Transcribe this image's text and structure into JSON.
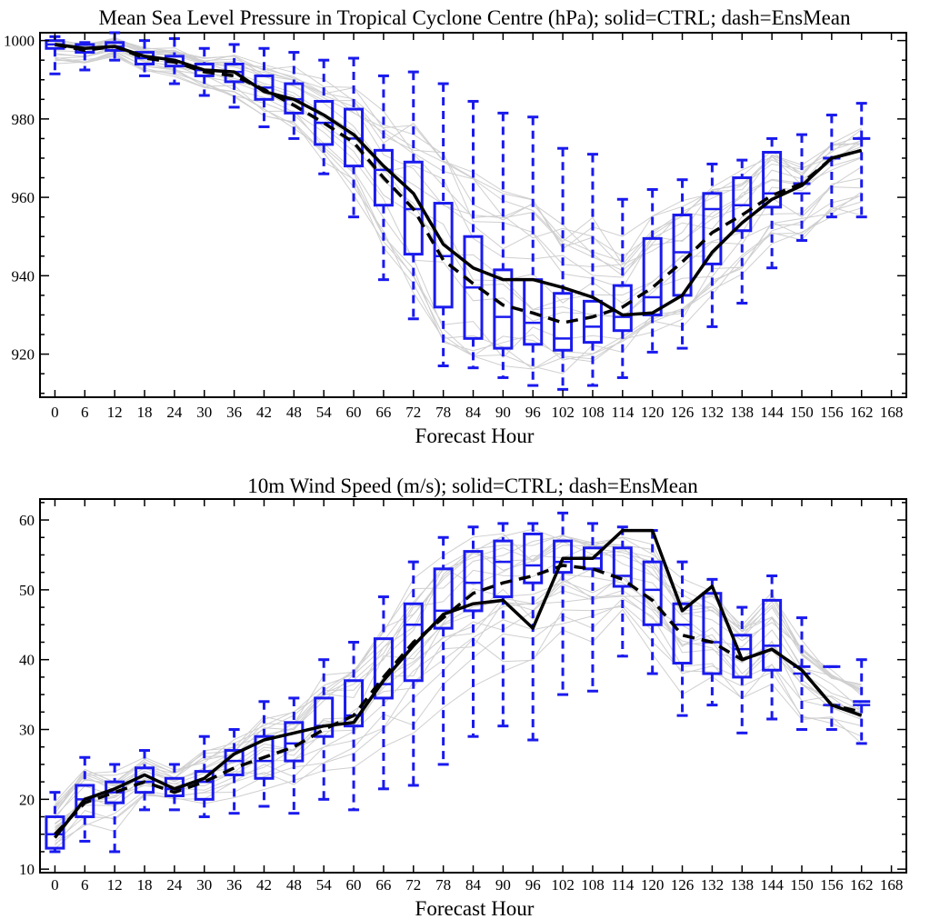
{
  "colors": {
    "box": "#1a1aee",
    "member": "#cfcfcf",
    "lines": "#000000"
  },
  "chart_data": [
    {
      "type": "box",
      "title": "Mean Sea Level Pressure in Tropical Cyclone Centre (hPa); solid=CTRL; dash=EnsMean",
      "xlabel": "Forecast Hour",
      "ylabel": "",
      "x_ticks": [
        "0",
        "6",
        "12",
        "18",
        "24",
        "30",
        "36",
        "42",
        "48",
        "54",
        "60",
        "66",
        "72",
        "78",
        "84",
        "90",
        "96",
        "102",
        "108",
        "114",
        "120",
        "126",
        "132",
        "138",
        "144",
        "150",
        "156",
        "162",
        "168"
      ],
      "y_ticks": [
        920,
        940,
        960,
        980,
        1000
      ],
      "xlim": [
        -3,
        171
      ],
      "ylim": [
        909,
        1002
      ],
      "boxes": [
        {
          "x": 0,
          "min": 991.5,
          "q1": 998,
          "median": 999,
          "q3": 1000,
          "max": 1001
        },
        {
          "x": 6,
          "min": 992.5,
          "q1": 997,
          "median": 998,
          "q3": 999,
          "max": 999.5
        },
        {
          "x": 12,
          "min": 995,
          "q1": 997.5,
          "median": 998.5,
          "q3": 999.5,
          "max": 1002
        },
        {
          "x": 18,
          "min": 991,
          "q1": 994,
          "median": 995.5,
          "q3": 997,
          "max": 1000
        },
        {
          "x": 24,
          "min": 989,
          "q1": 993.5,
          "median": 994.5,
          "q3": 996,
          "max": 1000.5
        },
        {
          "x": 30,
          "min": 986,
          "q1": 991,
          "median": 992.5,
          "q3": 994,
          "max": 998
        },
        {
          "x": 36,
          "min": 983,
          "q1": 989.5,
          "median": 992,
          "q3": 994,
          "max": 999
        },
        {
          "x": 42,
          "min": 978,
          "q1": 985,
          "median": 988,
          "q3": 991,
          "max": 998
        },
        {
          "x": 48,
          "min": 975,
          "q1": 981.5,
          "median": 985,
          "q3": 989,
          "max": 997
        },
        {
          "x": 54,
          "min": 966,
          "q1": 973.5,
          "median": 979,
          "q3": 984.5,
          "max": 995
        },
        {
          "x": 60,
          "min": 955,
          "q1": 968,
          "median": 975,
          "q3": 982.5,
          "max": 995.5
        },
        {
          "x": 66,
          "min": 939,
          "q1": 958,
          "median": 967,
          "q3": 972,
          "max": 991
        },
        {
          "x": 72,
          "min": 929,
          "q1": 945.5,
          "median": 957,
          "q3": 969,
          "max": 992
        },
        {
          "x": 78,
          "min": 917,
          "q1": 932,
          "median": 945,
          "q3": 958.5,
          "max": 989
        },
        {
          "x": 84,
          "min": 916.5,
          "q1": 924,
          "median": 937,
          "q3": 950,
          "max": 984.5
        },
        {
          "x": 90,
          "min": 914,
          "q1": 921.5,
          "median": 929.5,
          "q3": 941.5,
          "max": 981.5
        },
        {
          "x": 96,
          "min": 912,
          "q1": 922.5,
          "median": 928,
          "q3": 939,
          "max": 980.5
        },
        {
          "x": 102,
          "min": 911,
          "q1": 921,
          "median": 924,
          "q3": 935.5,
          "max": 972.5
        },
        {
          "x": 108,
          "min": 912,
          "q1": 923,
          "median": 927,
          "q3": 933.5,
          "max": 971
        },
        {
          "x": 114,
          "min": 914,
          "q1": 926,
          "median": 929.5,
          "q3": 937.5,
          "max": 959.5
        },
        {
          "x": 120,
          "min": 920.5,
          "q1": 930,
          "median": 934.5,
          "q3": 949.5,
          "max": 962
        },
        {
          "x": 126,
          "min": 921.5,
          "q1": 935,
          "median": 946,
          "q3": 955.5,
          "max": 964.5
        },
        {
          "x": 132,
          "min": 927,
          "q1": 943,
          "median": 957,
          "q3": 961,
          "max": 968.5
        },
        {
          "x": 138,
          "min": 933,
          "q1": 951.5,
          "median": 958,
          "q3": 965,
          "max": 969.5
        },
        {
          "x": 144,
          "min": 942,
          "q1": 957.5,
          "median": 961,
          "q3": 971.5,
          "max": 975
        },
        {
          "x": 150,
          "min": 949,
          "q1": null,
          "median": 961,
          "q3": 963.5,
          "max": 976
        },
        {
          "x": 156,
          "min": 955,
          "q1": null,
          "median": 970,
          "q3": 970,
          "max": 981
        },
        {
          "x": 162,
          "min": 955,
          "q1": null,
          "median": 975,
          "q3": 975,
          "max": 984
        }
      ],
      "ctrl": {
        "x": [
          0,
          6,
          12,
          18,
          24,
          30,
          36,
          42,
          48,
          54,
          60,
          66,
          72,
          78,
          84,
          90,
          96,
          102,
          108,
          114,
          120,
          126,
          132,
          138,
          144,
          150,
          156,
          162
        ],
        "values": [
          999,
          998,
          998.5,
          996,
          995,
          992.5,
          992,
          987,
          985,
          981,
          976,
          968,
          961,
          948,
          942,
          939,
          939,
          937,
          934.5,
          930,
          930.5,
          935,
          946,
          953.5,
          959.5,
          963,
          970,
          972
        ]
      },
      "ensmean": {
        "x": [
          0,
          6,
          12,
          18,
          24,
          30,
          36,
          42,
          48,
          54,
          60,
          66,
          72,
          78,
          84,
          90,
          96,
          102,
          108,
          114,
          120,
          126,
          132,
          138,
          144,
          150,
          156,
          162
        ],
        "values": [
          999,
          997.5,
          998.5,
          995.5,
          994.5,
          992,
          991,
          987.5,
          983.5,
          979,
          974,
          965,
          957,
          944,
          938,
          932.5,
          930.5,
          928,
          929.5,
          932,
          937,
          943.5,
          951,
          955.5,
          960.5,
          963.5,
          970,
          972
        ]
      }
    },
    {
      "type": "box",
      "title": "10m Wind Speed (m/s); solid=CTRL; dash=EnsMean",
      "xlabel": "Forecast Hour",
      "ylabel": "",
      "x_ticks": [
        "0",
        "6",
        "12",
        "18",
        "24",
        "30",
        "36",
        "42",
        "48",
        "54",
        "60",
        "66",
        "72",
        "78",
        "84",
        "90",
        "96",
        "102",
        "108",
        "114",
        "120",
        "126",
        "132",
        "138",
        "144",
        "150",
        "156",
        "162",
        "168"
      ],
      "y_ticks": [
        10,
        20,
        30,
        40,
        50,
        60
      ],
      "xlim": [
        -3,
        171
      ],
      "ylim": [
        9.5,
        63
      ],
      "boxes": [
        {
          "x": 0,
          "min": 12.5,
          "q1": 13,
          "median": 15,
          "q3": 17.5,
          "max": 21
        },
        {
          "x": 6,
          "min": 14,
          "q1": 17.5,
          "median": 20,
          "q3": 22,
          "max": 26
        },
        {
          "x": 12,
          "min": 12.5,
          "q1": 19.5,
          "median": 21,
          "q3": 22.5,
          "max": 25
        },
        {
          "x": 18,
          "min": 18.5,
          "q1": 21,
          "median": 22.5,
          "q3": 24.5,
          "max": 27
        },
        {
          "x": 24,
          "min": 18.5,
          "q1": 20.5,
          "median": 21.5,
          "q3": 23,
          "max": 25
        },
        {
          "x": 30,
          "min": 17.5,
          "q1": 20,
          "median": 22.5,
          "q3": 24,
          "max": 29
        },
        {
          "x": 36,
          "min": 18,
          "q1": 23.5,
          "median": 25.5,
          "q3": 27,
          "max": 30
        },
        {
          "x": 42,
          "min": 19,
          "q1": 23,
          "median": 25.5,
          "q3": 29,
          "max": 34
        },
        {
          "x": 48,
          "min": 18,
          "q1": 25.5,
          "median": 28,
          "q3": 31,
          "max": 34.5
        },
        {
          "x": 54,
          "min": 20,
          "q1": 29,
          "median": 30.5,
          "q3": 34.5,
          "max": 40
        },
        {
          "x": 60,
          "min": 18.5,
          "q1": 30.5,
          "median": 32,
          "q3": 37,
          "max": 42.5
        },
        {
          "x": 66,
          "min": 21.5,
          "q1": 34.5,
          "median": 36.5,
          "q3": 43,
          "max": 49
        },
        {
          "x": 72,
          "min": 22,
          "q1": 37,
          "median": 45,
          "q3": 48,
          "max": 54
        },
        {
          "x": 78,
          "min": 25,
          "q1": 44.5,
          "median": 47,
          "q3": 53,
          "max": 57.5
        },
        {
          "x": 84,
          "min": 29,
          "q1": 47,
          "median": 51,
          "q3": 55.5,
          "max": 59
        },
        {
          "x": 90,
          "min": 30.5,
          "q1": 49,
          "median": 54,
          "q3": 57,
          "max": 59.5
        },
        {
          "x": 96,
          "min": 28.5,
          "q1": 51,
          "median": 53.5,
          "q3": 58,
          "max": 59.5
        },
        {
          "x": 102,
          "min": 35,
          "q1": 52.5,
          "median": 54,
          "q3": 57,
          "max": 61
        },
        {
          "x": 108,
          "min": 35.5,
          "q1": 53,
          "median": 54.5,
          "q3": 56,
          "max": 59.5
        },
        {
          "x": 114,
          "min": 40.5,
          "q1": 50.5,
          "median": 52,
          "q3": 56,
          "max": 59
        },
        {
          "x": 120,
          "min": 38,
          "q1": 45,
          "median": 50,
          "q3": 54,
          "max": 58.5
        },
        {
          "x": 126,
          "min": 32,
          "q1": 39.5,
          "median": 45,
          "q3": 48,
          "max": 54
        },
        {
          "x": 132,
          "min": 33.5,
          "q1": 38,
          "median": 42.5,
          "q3": 49.5,
          "max": 51.5
        },
        {
          "x": 138,
          "min": 29.5,
          "q1": 37.5,
          "median": 41.5,
          "q3": 43.5,
          "max": 47.5
        },
        {
          "x": 144,
          "min": 31.5,
          "q1": 38.5,
          "median": 42,
          "q3": 48.5,
          "max": 52
        },
        {
          "x": 150,
          "min": 30,
          "q1": null,
          "median": 38,
          "q3": 39,
          "max": 46
        },
        {
          "x": 156,
          "min": 30,
          "q1": null,
          "median": 33.5,
          "q3": 39,
          "max": 39
        },
        {
          "x": 162,
          "min": 28,
          "q1": null,
          "median": 33.5,
          "q3": 34,
          "max": 40
        }
      ],
      "ctrl": {
        "x": [
          0,
          6,
          12,
          18,
          24,
          30,
          36,
          42,
          48,
          54,
          60,
          66,
          72,
          78,
          84,
          90,
          96,
          102,
          108,
          114,
          120,
          126,
          132,
          138,
          144,
          150,
          156,
          162
        ],
        "values": [
          14.5,
          20,
          21.5,
          23.5,
          21.5,
          23,
          26.5,
          28.5,
          29.5,
          30.5,
          31,
          37,
          42,
          46.5,
          48,
          48.5,
          44.5,
          54.5,
          54.5,
          58.5,
          58.5,
          47,
          50.5,
          40,
          41.5,
          38.5,
          33.5,
          32
        ]
      },
      "ensmean": {
        "x": [
          0,
          6,
          12,
          18,
          24,
          30,
          36,
          42,
          48,
          54,
          60,
          66,
          72,
          78,
          84,
          90,
          96,
          102,
          108,
          114,
          120,
          126,
          132,
          138,
          144,
          150,
          156,
          162
        ],
        "values": [
          15,
          19.5,
          21,
          22.5,
          21,
          22.5,
          24.5,
          26,
          27.5,
          30,
          32,
          37.5,
          42.5,
          46,
          49.5,
          51,
          52,
          53.5,
          53,
          51.5,
          48.5,
          43.5,
          42.5,
          40,
          41.5,
          38.5,
          33.5,
          32.5
        ]
      }
    }
  ]
}
